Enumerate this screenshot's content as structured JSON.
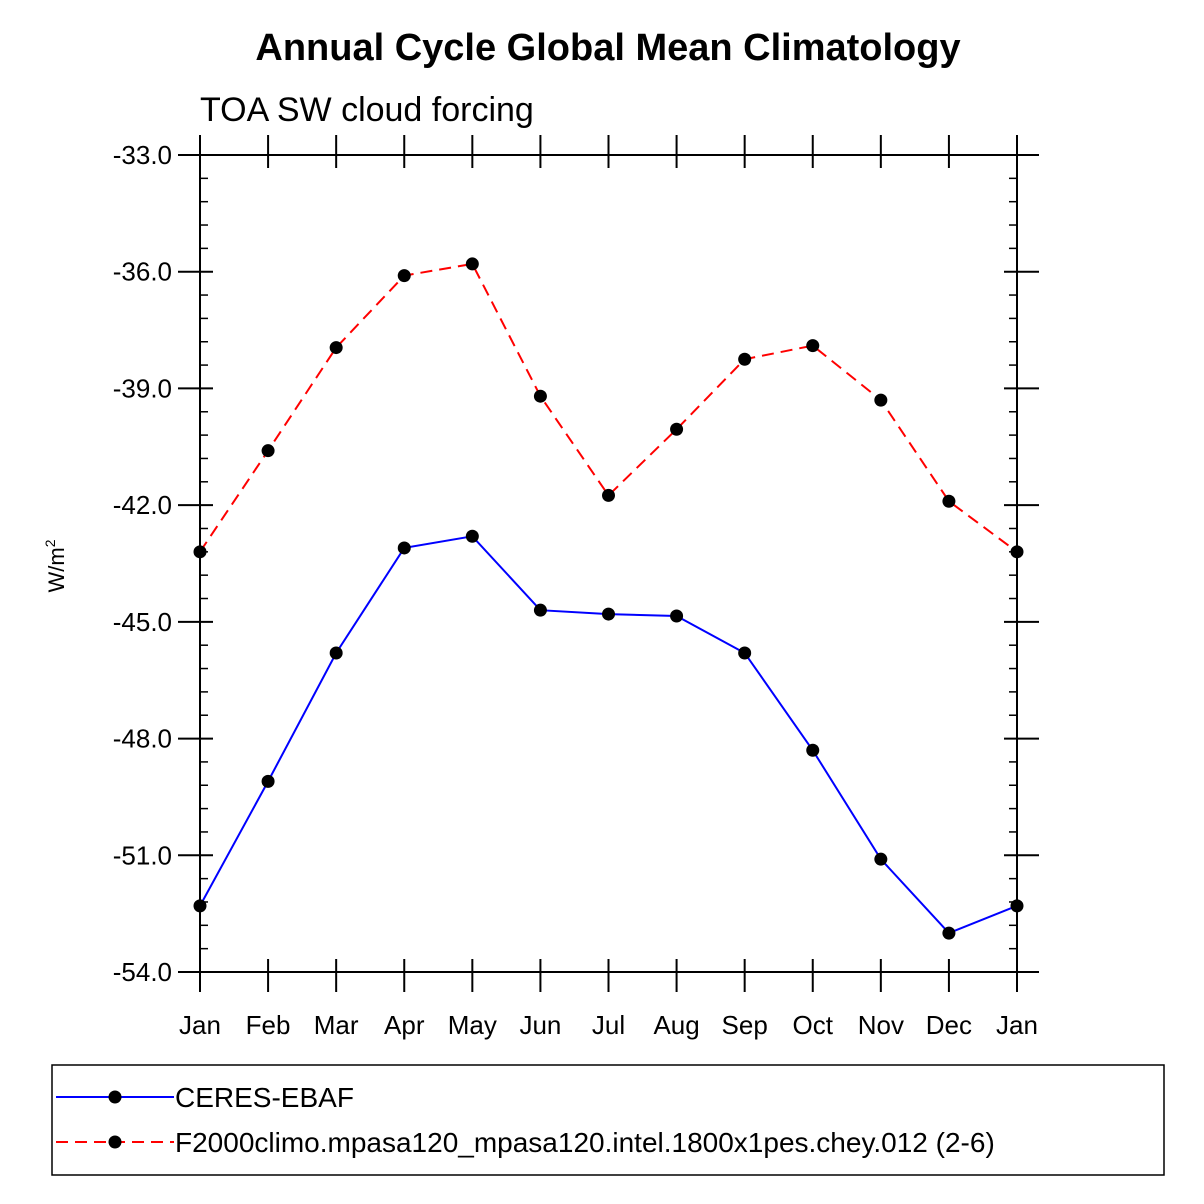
{
  "chart_data": {
    "type": "line",
    "title": "Annual Cycle Global Mean Climatology",
    "subtitle": "TOA SW cloud forcing",
    "xlabel": "",
    "ylabel": "W/m",
    "ylabel_sup": "2",
    "categories": [
      "Jan",
      "Feb",
      "Mar",
      "Apr",
      "May",
      "Jun",
      "Jul",
      "Aug",
      "Sep",
      "Oct",
      "Nov",
      "Dec",
      "Jan"
    ],
    "ylim": [
      -54.0,
      -33.0
    ],
    "yticks": [
      -33.0,
      -36.0,
      -39.0,
      -42.0,
      -45.0,
      -48.0,
      -51.0,
      -54.0
    ],
    "ytick_labels": [
      "-33.0",
      "-36.0",
      "-39.0",
      "-42.0",
      "-45.0",
      "-48.0",
      "-51.0",
      "-54.0"
    ],
    "series": [
      {
        "name": "CERES-EBAF",
        "color": "#0000ff",
        "dash": "solid",
        "values": [
          -52.3,
          -49.1,
          -45.8,
          -43.1,
          -42.8,
          -44.7,
          -44.8,
          -44.85,
          -45.8,
          -48.3,
          -51.1,
          -53.0,
          -52.3
        ]
      },
      {
        "name": "F2000climo.mpasa120_mpasa120.intel.1800x1pes.chey.012 (2-6)",
        "color": "#ff0000",
        "dash": "dashed",
        "values": [
          -43.2,
          -40.6,
          -37.95,
          -36.1,
          -35.8,
          -39.2,
          -41.75,
          -40.05,
          -38.25,
          -37.9,
          -39.3,
          -41.9,
          -43.2
        ]
      }
    ],
    "legend_position": "bottom"
  }
}
